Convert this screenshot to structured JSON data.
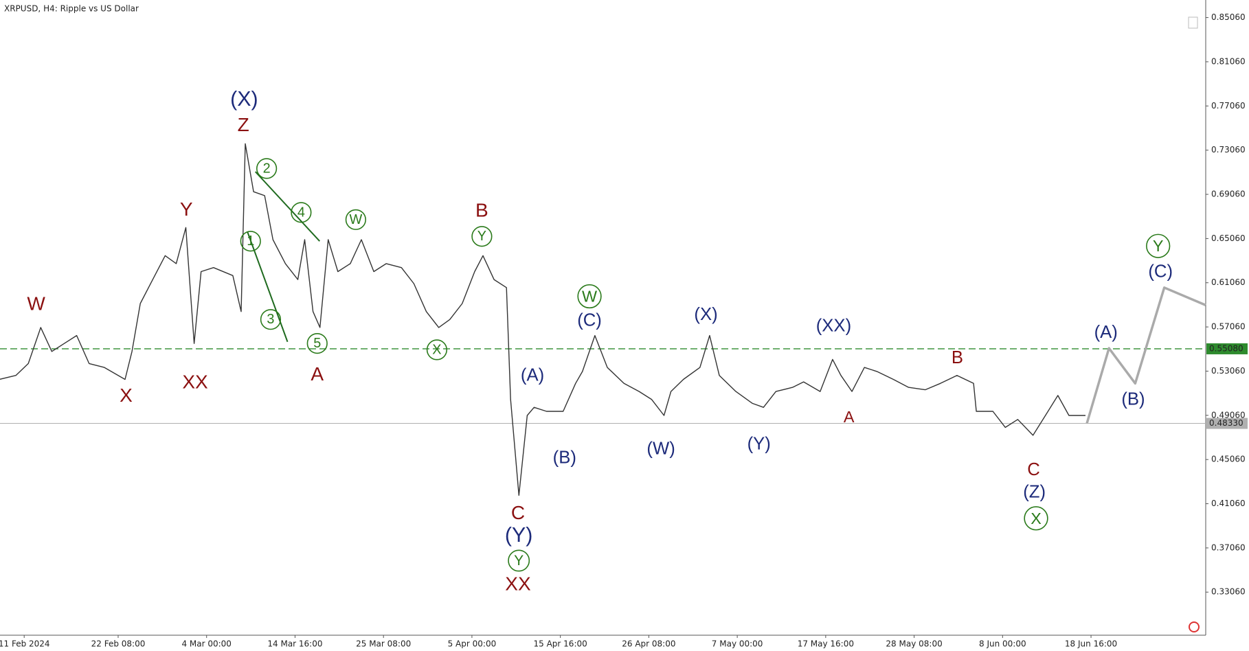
{
  "chart_data": {
    "type": "line",
    "title": "XRPUSD, H4:  Ripple vs US Dollar",
    "xlim": [
      "2024-02-08T02:00",
      "2024-07-02T12:00"
    ],
    "ylim": [
      0.2916,
      0.8665
    ],
    "yticks": [
      {
        "value": 0.8506,
        "label": "0.85060"
      },
      {
        "value": 0.8106,
        "label": "0.81060"
      },
      {
        "value": 0.7706,
        "label": "0.77060"
      },
      {
        "value": 0.7306,
        "label": "0.73060"
      },
      {
        "value": 0.6906,
        "label": "0.69060"
      },
      {
        "value": 0.6506,
        "label": "0.65060"
      },
      {
        "value": 0.6106,
        "label": "0.61060"
      },
      {
        "value": 0.5706,
        "label": "0.57060"
      },
      {
        "value": 0.5306,
        "label": "0.53060"
      },
      {
        "value": 0.4906,
        "label": "0.49060"
      },
      {
        "value": 0.4506,
        "label": "0.45060"
      },
      {
        "value": 0.4106,
        "label": "0.41060"
      },
      {
        "value": 0.3706,
        "label": "0.37060"
      },
      {
        "value": 0.3306,
        "label": "0.33060"
      }
    ],
    "xticks": [
      {
        "value": "2024-02-11T00:00",
        "label": "11 Feb 2024"
      },
      {
        "value": "2024-02-22T08:00",
        "label": "22 Feb 08:00"
      },
      {
        "value": "2024-03-04T00:00",
        "label": "4 Mar 00:00"
      },
      {
        "value": "2024-03-14T16:00",
        "label": "14 Mar 16:00"
      },
      {
        "value": "2024-03-25T08:00",
        "label": "25 Mar 08:00"
      },
      {
        "value": "2024-04-05T00:00",
        "label": "5 Apr 00:00"
      },
      {
        "value": "2024-04-15T16:00",
        "label": "15 Apr 16:00"
      },
      {
        "value": "2024-04-26T08:00",
        "label": "26 Apr 08:00"
      },
      {
        "value": "2024-05-07T00:00",
        "label": "7 May 00:00"
      },
      {
        "value": "2024-05-17T16:00",
        "label": "17 May 16:00"
      },
      {
        "value": "2024-05-28T08:00",
        "label": "28 May 08:00"
      },
      {
        "value": "2024-06-08T00:00",
        "label": "8 Jun 00:00"
      },
      {
        "value": "2024-06-18T16:00",
        "label": "18 Jun 16:00"
      }
    ],
    "series": [
      {
        "color": "#333333",
        "x": [
          "2024-02-08T00:00",
          "2024-02-10T00:00",
          "2024-02-11T12:00",
          "2024-02-13T00:00",
          "2024-02-14T08:00",
          "2024-02-15T20:00",
          "2024-02-17T08:00",
          "2024-02-18T20:00",
          "2024-02-20T16:00",
          "2024-02-23T04:00",
          "2024-02-24T00:00",
          "2024-02-25T00:00",
          "2024-02-26T12:00",
          "2024-02-28T00:00",
          "2024-02-29T08:00",
          "2024-03-01T12:00",
          "2024-03-02T12:00",
          "2024-03-03T08:00",
          "2024-03-04T20:00",
          "2024-03-07T04:00",
          "2024-03-08T04:00",
          "2024-03-08T16:00",
          "2024-03-09T16:00",
          "2024-03-11T00:00",
          "2024-03-12T00:00",
          "2024-03-13T12:00",
          "2024-03-15T00:00",
          "2024-03-15T20:00",
          "2024-03-16T20:00",
          "2024-03-17T16:00",
          "2024-03-18T16:00",
          "2024-03-19T20:00",
          "2024-03-21T08:00",
          "2024-03-22T16:00",
          "2024-03-24T04:00",
          "2024-03-25T16:00",
          "2024-03-27T12:00",
          "2024-03-29T00:00",
          "2024-03-30T12:00",
          "2024-04-01T00:00",
          "2024-04-02T08:00",
          "2024-04-03T20:00",
          "2024-04-05T08:00",
          "2024-04-06T08:00",
          "2024-04-07T16:00",
          "2024-04-09T04:00",
          "2024-04-09T16:00",
          "2024-04-10T16:00",
          "2024-04-11T16:00",
          "2024-04-12T12:00",
          "2024-04-14T00:00",
          "2024-04-16T00:00",
          "2024-04-17T12:00",
          "2024-04-18T08:00",
          "2024-04-19T20:00",
          "2024-04-21T08:00",
          "2024-04-23T08:00",
          "2024-04-25T04:00",
          "2024-04-26T16:00",
          "2024-04-28T04:00",
          "2024-04-29T00:00",
          "2024-04-30T12:00",
          "2024-05-02T12:00",
          "2024-05-03T16:00",
          "2024-05-04T20:00",
          "2024-05-06T20:00",
          "2024-05-08T20:00",
          "2024-05-10T04:00",
          "2024-05-11T16:00",
          "2024-05-13T16:00",
          "2024-05-15T00:00",
          "2024-05-17T00:00",
          "2024-05-18T12:00",
          "2024-05-19T12:00",
          "2024-05-20T20:00",
          "2024-05-22T08:00",
          "2024-05-23T20:00",
          "2024-05-25T20:00",
          "2024-05-27T16:00",
          "2024-05-29T16:00",
          "2024-05-31T12:00",
          "2024-06-02T12:00",
          "2024-06-04T12:00",
          "2024-06-04T20:00",
          "2024-06-06T20:00",
          "2024-06-08T08:00",
          "2024-06-09T20:00",
          "2024-06-11T16:00",
          "2024-06-13T04:00",
          "2024-06-14T16:00",
          "2024-06-16T00:00",
          "2024-06-18T00:00"
        ],
        "values": [
          0.5231,
          0.5267,
          0.5375,
          0.5701,
          0.5484,
          0.5556,
          0.5628,
          0.5375,
          0.5339,
          0.5231,
          0.5484,
          0.5918,
          0.6135,
          0.6351,
          0.6279,
          0.6605,
          0.5556,
          0.6207,
          0.6243,
          0.6171,
          0.5845,
          0.7364,
          0.693,
          0.6894,
          0.6496,
          0.6279,
          0.6135,
          0.6496,
          0.5845,
          0.5701,
          0.6496,
          0.6207,
          0.6279,
          0.6496,
          0.6207,
          0.6279,
          0.6243,
          0.6098,
          0.5845,
          0.5701,
          0.5773,
          0.5918,
          0.6207,
          0.6351,
          0.6135,
          0.6062,
          0.505,
          0.4182,
          0.4905,
          0.4978,
          0.4942,
          0.4942,
          0.5195,
          0.5303,
          0.5628,
          0.5339,
          0.5195,
          0.5122,
          0.505,
          0.4905,
          0.5122,
          0.5231,
          0.5339,
          0.5628,
          0.5267,
          0.5122,
          0.5014,
          0.4978,
          0.5122,
          0.5159,
          0.5209,
          0.5122,
          0.5412,
          0.5267,
          0.5122,
          0.5339,
          0.5303,
          0.5231,
          0.5159,
          0.5137,
          0.5195,
          0.5267,
          0.5195,
          0.4942,
          0.4942,
          0.4797,
          0.4869,
          0.4725,
          0.4905,
          0.5086,
          0.4905,
          0.4905
        ]
      },
      {
        "color": "#aaaaaa",
        "x": [
          "2024-06-18T04:00",
          "2024-06-20T20:00",
          "2024-06-24T00:00",
          "2024-06-27T12:00",
          "2024-07-02T12:00"
        ],
        "values": [
          0.4833,
          0.5513,
          0.5195,
          0.6062,
          0.5903
        ]
      }
    ],
    "levels": [
      {
        "value": 0.5508,
        "label": "0.55080",
        "color": "#2e8b2e",
        "style": "dashed"
      },
      {
        "value": 0.4833,
        "label": "0.48330",
        "color": "#b0b0b0",
        "style": "solid"
      }
    ],
    "annotations": [
      {
        "text": "W",
        "color": "#8b1010"
      },
      {
        "text": "X",
        "color": "#8b1010"
      },
      {
        "text": "Y",
        "color": "#8b1010"
      },
      {
        "text": "XX",
        "color": "#8b1010"
      },
      {
        "text": "(X)",
        "color": "#1c2a7a"
      },
      {
        "text": "Z",
        "color": "#8b1010"
      },
      {
        "text": "2",
        "color": "#2a7a1a",
        "circled": true
      },
      {
        "text": "4",
        "color": "#2a7a1a",
        "circled": true
      },
      {
        "text": "1",
        "color": "#2a7a1a",
        "circled": true
      },
      {
        "text": "3",
        "color": "#2a7a1a",
        "circled": true
      },
      {
        "text": "5",
        "color": "#2a7a1a",
        "circled": true
      },
      {
        "text": "A",
        "color": "#8b1010"
      },
      {
        "text": "W",
        "color": "#2a7a1a",
        "circled": true
      },
      {
        "text": "B",
        "color": "#8b1010"
      },
      {
        "text": "Y",
        "color": "#2a7a1a",
        "circled": true
      },
      {
        "text": "X",
        "color": "#2a7a1a",
        "circled": true
      },
      {
        "text": "(A)",
        "color": "#1c2a7a"
      },
      {
        "text": "(B)",
        "color": "#1c2a7a"
      },
      {
        "text": "C",
        "color": "#8b1010"
      },
      {
        "text": "(Y)",
        "color": "#1c2a7a"
      },
      {
        "text": "Y",
        "color": "#2a7a1a",
        "circled": true
      },
      {
        "text": "XX",
        "color": "#8b1010"
      },
      {
        "text": "W",
        "color": "#2a7a1a",
        "circled": true
      },
      {
        "text": "(C)",
        "color": "#1c2a7a"
      },
      {
        "text": "(W)",
        "color": "#1c2a7a"
      },
      {
        "text": "(X)",
        "color": "#1c2a7a"
      },
      {
        "text": "(Y)",
        "color": "#1c2a7a"
      },
      {
        "text": "(XX)",
        "color": "#1c2a7a"
      },
      {
        "text": "A",
        "color": "#8b1010"
      },
      {
        "text": "B",
        "color": "#8b1010"
      },
      {
        "text": "C",
        "color": "#8b1010"
      },
      {
        "text": "(Z)",
        "color": "#1c2a7a"
      },
      {
        "text": "X",
        "color": "#2a7a1a",
        "circled": true
      },
      {
        "text": "(A)",
        "color": "#1c2a7a"
      },
      {
        "text": "(B)",
        "color": "#1c2a7a"
      },
      {
        "text": "(C)",
        "color": "#1c2a7a"
      },
      {
        "text": "Y",
        "color": "#2a7a1a",
        "circled": true
      }
    ]
  }
}
